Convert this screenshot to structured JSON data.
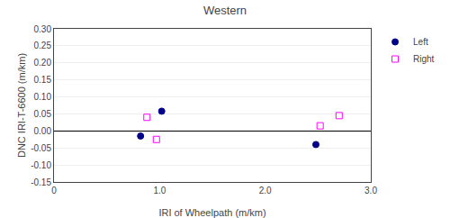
{
  "chart_data": {
    "type": "scatter",
    "title": "Western",
    "x_label": "IRI of Wheelpath (m/km)",
    "y_label": "DNC IRI-T-6600 (m/km)",
    "series": [
      {
        "name": "Left",
        "color": "#00008B",
        "marker": "circle",
        "x": [
          0.82,
          1.02,
          2.48
        ],
        "values": [
          -0.015,
          0.058,
          -0.04
        ]
      },
      {
        "name": "Right",
        "color": "#FF00FF",
        "marker": "square-open",
        "x": [
          0.88,
          0.97,
          2.52,
          2.7
        ],
        "values": [
          0.04,
          -0.025,
          0.015,
          0.045
        ]
      }
    ],
    "xlim": [
      0,
      3.0
    ],
    "xticks": [
      0,
      {
        "value": 1.0,
        "label": "1.0"
      },
      {
        "value": 2.0,
        "label": "2.0"
      },
      {
        "value": 3.0,
        "label": "3.0"
      }
    ],
    "ylim": [
      -0.15,
      0.3
    ],
    "yticks": [
      -0.15,
      {
        "value": -0.1,
        "label": "-0.10"
      },
      -0.05,
      {
        "value": 0.0,
        "label": "0.00"
      },
      0.05,
      {
        "value": 0.1,
        "label": "0.10"
      },
      0.15,
      {
        "value": 0.2,
        "label": "0.20"
      },
      0.25,
      {
        "value": 0.3,
        "label": "0.30"
      }
    ],
    "grid": "y",
    "legend": "right"
  }
}
